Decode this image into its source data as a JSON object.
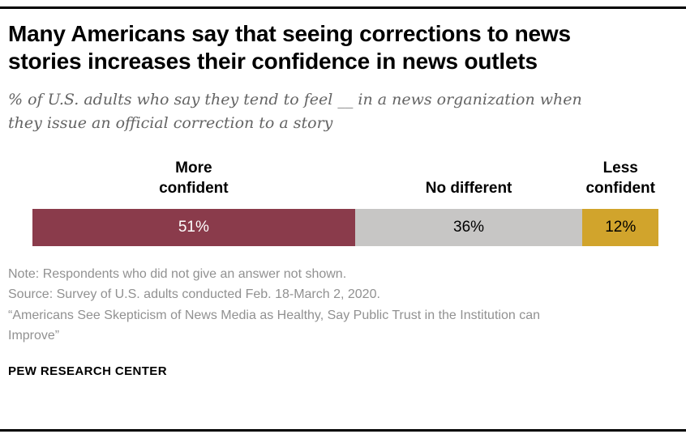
{
  "chart_data": {
    "type": "bar",
    "stacked": true,
    "orientation": "horizontal",
    "title": "Many Americans say that seeing corrections to news\nstories increases their confidence in news outlets",
    "subtitle": "% of U.S. adults who say they tend to feel __ in a news organization when\nthey issue an official correction to a story",
    "categories": [
      "More confident",
      "No different",
      "Less confident"
    ],
    "display_categories": [
      "More\nconfident",
      "No different",
      "Less\nconfident"
    ],
    "values": [
      51,
      36,
      12
    ],
    "value_labels": [
      "51%",
      "36%",
      "12%"
    ],
    "colors": [
      "#8a3b4b",
      "#c7c6c5",
      "#d1a42c"
    ],
    "value_text_colors": [
      "#ffffff",
      "#000000",
      "#000000"
    ],
    "xlim": [
      0,
      100
    ],
    "grid": false,
    "legend_position": "labels-above-segments"
  },
  "notes": {
    "note": "Note: Respondents who did not give an answer not shown.",
    "source": "Source: Survey of U.S. adults conducted Feb. 18-March 2, 2020.",
    "report": "“Americans See Skepticism of News Media as Healthy, Say Public Trust in the Institution can\nImprove”"
  },
  "footer": {
    "brand": "PEW RESEARCH CENTER"
  }
}
